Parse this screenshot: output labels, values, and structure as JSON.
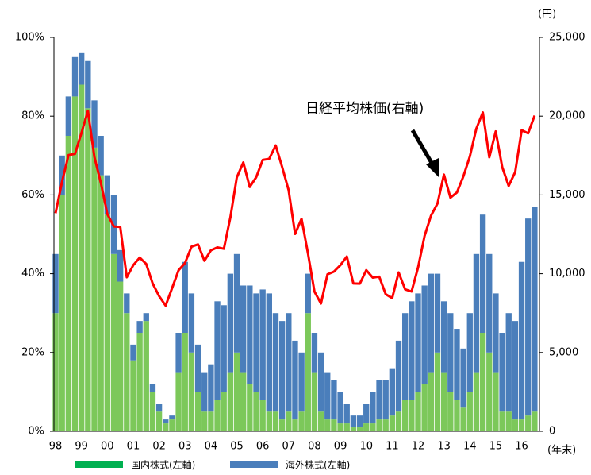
{
  "chart_data": {
    "type": "bar_line",
    "annotation": "日経平均株価(右軸)",
    "y2_unit": "(円)",
    "x_unit": "(年末)",
    "categories": [
      "98",
      null,
      null,
      null,
      "99",
      null,
      null,
      null,
      "00",
      null,
      null,
      null,
      "01",
      null,
      null,
      null,
      "02",
      null,
      null,
      null,
      "03",
      null,
      null,
      null,
      "04",
      null,
      null,
      null,
      "05",
      null,
      null,
      null,
      "06",
      null,
      null,
      null,
      "07",
      null,
      null,
      null,
      "08",
      null,
      null,
      null,
      "09",
      null,
      null,
      null,
      "10",
      null,
      null,
      null,
      "11",
      null,
      null,
      null,
      "12",
      null,
      null,
      null,
      "13",
      null,
      null,
      null,
      "14",
      null,
      null,
      null,
      "15",
      null,
      null,
      null,
      "16",
      null,
      null
    ],
    "series": [
      {
        "name": "国内株式(左軸)",
        "color": "#7cc85a",
        "legend_color": "#00b050",
        "stacked": true,
        "values": [
          30,
          60,
          75,
          85,
          88,
          82,
          72,
          65,
          55,
          45,
          38,
          30,
          18,
          25,
          28,
          10,
          5,
          2,
          3,
          15,
          25,
          20,
          10,
          5,
          5,
          8,
          10,
          15,
          20,
          15,
          12,
          10,
          8,
          5,
          5,
          3,
          5,
          3,
          5,
          30,
          15,
          5,
          3,
          3,
          2,
          2,
          1,
          1,
          2,
          2,
          3,
          3,
          4,
          5,
          8,
          8,
          10,
          12,
          15,
          20,
          15,
          10,
          8,
          6,
          10,
          15,
          25,
          20,
          15,
          5,
          5,
          3,
          3,
          4,
          5
        ]
      },
      {
        "name": "海外株式(左軸)",
        "color": "#4a7ebb",
        "legend_color": "#4a7ebb",
        "stacked": true,
        "values": [
          15,
          10,
          10,
          10,
          8,
          12,
          12,
          10,
          10,
          15,
          8,
          5,
          4,
          3,
          2,
          2,
          2,
          1,
          1,
          10,
          18,
          15,
          12,
          10,
          12,
          25,
          22,
          25,
          25,
          22,
          25,
          25,
          28,
          30,
          25,
          25,
          25,
          20,
          15,
          10,
          10,
          15,
          12,
          10,
          8,
          5,
          3,
          3,
          5,
          8,
          10,
          10,
          12,
          18,
          22,
          25,
          25,
          25,
          25,
          20,
          18,
          20,
          18,
          15,
          20,
          30,
          30,
          25,
          20,
          20,
          25,
          25,
          40,
          50,
          52
        ]
      },
      {
        "name": "日経平均株価",
        "color": "#ff0000",
        "axis": "y2",
        "line": true,
        "values": [
          13842,
          15836,
          17529,
          17605,
          18934,
          20337,
          17411,
          15747,
          13785,
          12999,
          12969,
          9774,
          10542,
          11024,
          10621,
          9383,
          8578,
          7972,
          9083,
          10219,
          10676,
          11715,
          11858,
          10823,
          11488,
          11668,
          11584,
          13574,
          16111,
          17059,
          15505,
          16127,
          17225,
          17287,
          18138,
          16785,
          15307,
          12525,
          13481,
          11259,
          8859,
          8109,
          9958,
          10133,
          10546,
          11089,
          9382,
          9369,
          10228,
          9755,
          9816,
          8700,
          8455,
          10083,
          9006,
          8870,
          10395,
          12397,
          13677,
          14455,
          16291,
          14827,
          15162,
          16173,
          17450,
          19206,
          20235,
          17388,
          19033,
          16758,
          15575,
          16449,
          19114,
          18909,
          20033
        ]
      }
    ],
    "ylim": [
      0,
      100
    ],
    "yticks": [
      {
        "value": 0,
        "label": "0%"
      },
      {
        "value": 20,
        "label": "20%"
      },
      {
        "value": 40,
        "label": "40%"
      },
      {
        "value": 60,
        "label": "60%"
      },
      {
        "value": 80,
        "label": "80%"
      },
      {
        "value": 100,
        "label": "100%"
      }
    ],
    "y2lim": [
      0,
      25000
    ],
    "y2ticks": [
      0,
      {
        "value": 5000,
        "label": "5,000"
      },
      {
        "value": 10000,
        "label": "10,000"
      },
      {
        "value": 15000,
        "label": "15,000"
      },
      {
        "value": 20000,
        "label": "20,000"
      },
      {
        "value": 25000,
        "label": "25,000"
      }
    ],
    "grid": false
  }
}
